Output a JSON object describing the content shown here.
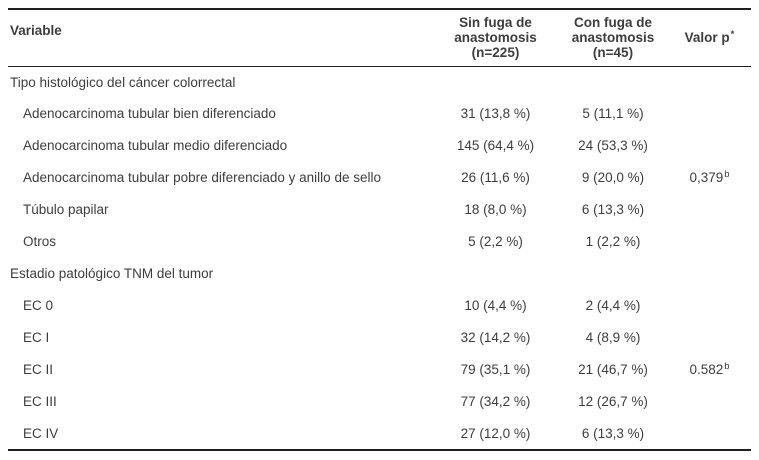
{
  "table": {
    "title_semantic": "Comparación de variables histológicas y estadio TNM según fuga de anastomosis",
    "colors": {
      "text": "#3d3d3d",
      "rule": "#1f1f1f",
      "background": "#ffffff"
    },
    "header": {
      "variable": "Variable",
      "sin_fuga": "Sin fuga de\nanastomosis\n(n=225)",
      "con_fuga": "Con fuga de\nanastomosis\n(n=45)",
      "valor_p": "Valor p",
      "valor_p_sup": "*"
    },
    "rows": [
      {
        "type": "section",
        "label": "Tipo histológico del cáncer colorrectal",
        "sin": "",
        "con": "",
        "p": "",
        "p_sup": ""
      },
      {
        "type": "item",
        "label": "Adenocarcinoma tubular bien diferenciado",
        "sin": "31 (13,8 %)",
        "con": "5 (11,1 %)",
        "p": "",
        "p_sup": ""
      },
      {
        "type": "item",
        "label": "Adenocarcinoma tubular medio diferenciado",
        "sin": "145 (64,4 %)",
        "con": "24 (53,3 %)",
        "p": "",
        "p_sup": ""
      },
      {
        "type": "item",
        "label": "Adenocarcinoma tubular pobre diferenciado y anillo de sello",
        "sin": "26 (11,6 %)",
        "con": "9 (20,0 %)",
        "p": "0,379",
        "p_sup": "b"
      },
      {
        "type": "item",
        "label": "Túbulo papilar",
        "sin": "18 (8,0 %)",
        "con": "6 (13,3 %)",
        "p": "",
        "p_sup": ""
      },
      {
        "type": "item",
        "label": "Otros",
        "sin": "5 (2,2 %)",
        "con": "1 (2,2 %)",
        "p": "",
        "p_sup": ""
      },
      {
        "type": "section",
        "label": "Estadio patológico TNM del tumor",
        "sin": "",
        "con": "",
        "p": "",
        "p_sup": ""
      },
      {
        "type": "item",
        "label": "EC 0",
        "sin": "10 (4,4 %)",
        "con": "2 (4,4 %)",
        "p": "",
        "p_sup": ""
      },
      {
        "type": "item",
        "label": "EC I",
        "sin": "32 (14,2 %)",
        "con": "4 (8,9 %)",
        "p": "",
        "p_sup": ""
      },
      {
        "type": "item",
        "label": "EC II",
        "sin": "79 (35,1 %)",
        "con": "21 (46,7 %)",
        "p": "0.582",
        "p_sup": "b"
      },
      {
        "type": "item",
        "label": "EC III",
        "sin": "77 (34,2 %)",
        "con": "12 (26,7 %)",
        "p": "",
        "p_sup": ""
      },
      {
        "type": "item",
        "label": "EC IV",
        "sin": "27 (12,0 %)",
        "con": "6 (13,3 %)",
        "p": "",
        "p_sup": ""
      }
    ]
  }
}
